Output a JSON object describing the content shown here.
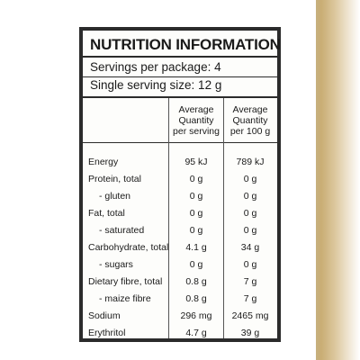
{
  "panel": {
    "title": "NUTRITION INFORMATION",
    "servings_per_package": "Servings per package: 4",
    "serving_size": "Single serving size: 12 g"
  },
  "columns": {
    "per_serving": [
      "Average",
      "Quantity",
      "per serving"
    ],
    "per_100g": [
      "Average",
      "Quantity",
      "per 100 g"
    ]
  },
  "rows": [
    {
      "label": "Energy",
      "per_serving": "95 kJ",
      "per_100g": "789 kJ",
      "sub": false
    },
    {
      "label": "Protein, total",
      "per_serving": "0 g",
      "per_100g": "0 g",
      "sub": false
    },
    {
      "label": "- gluten",
      "per_serving": "0 g",
      "per_100g": "0 g",
      "sub": true
    },
    {
      "label": "Fat, total",
      "per_serving": "0 g",
      "per_100g": "0 g",
      "sub": false
    },
    {
      "label": "- saturated",
      "per_serving": "0 g",
      "per_100g": "0 g",
      "sub": true
    },
    {
      "label": "Carbohydrate, total",
      "per_serving": "4.1 g",
      "per_100g": "34 g",
      "sub": false
    },
    {
      "label": "- sugars",
      "per_serving": "0 g",
      "per_100g": "0 g",
      "sub": true
    },
    {
      "label": "Dietary fibre, total",
      "per_serving": "0.8 g",
      "per_100g": "7 g",
      "sub": false
    },
    {
      "label": "- maize fibre",
      "per_serving": "0.8 g",
      "per_100g": "7 g",
      "sub": true
    },
    {
      "label": "Sodium",
      "per_serving": "296 mg",
      "per_100g": "2465 mg",
      "sub": false
    },
    {
      "label": "Erythritol",
      "per_serving": "4.7 g",
      "per_100g": "39 g",
      "sub": false
    }
  ]
}
